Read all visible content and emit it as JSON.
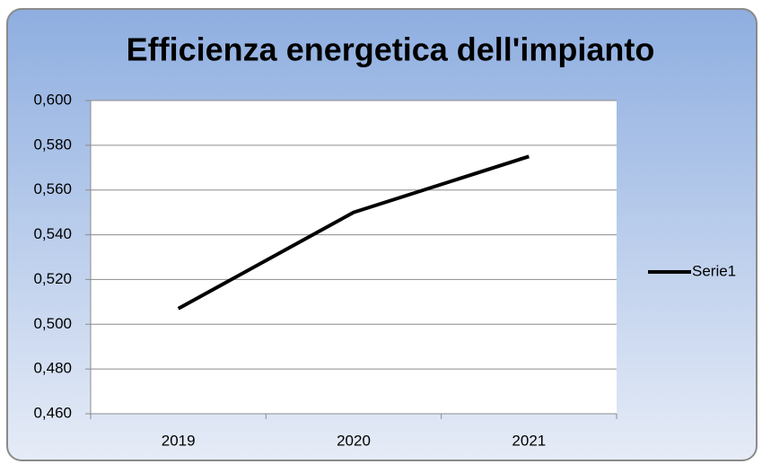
{
  "chart_data": {
    "type": "line",
    "title": "Efficienza energetica dell'impianto",
    "categories": [
      "2019",
      "2020",
      "2021"
    ],
    "series": [
      {
        "name": "Serie1",
        "color": "#000000",
        "values": [
          0.507,
          0.55,
          0.575
        ]
      }
    ],
    "ylim": [
      0.46,
      0.6
    ],
    "yticks": [
      {
        "value": 0.46,
        "label": "0,460"
      },
      {
        "value": 0.48,
        "label": "0,480"
      },
      {
        "value": 0.5,
        "label": "0,500"
      },
      {
        "value": 0.52,
        "label": "0,520"
      },
      {
        "value": 0.54,
        "label": "0,540"
      },
      {
        "value": 0.56,
        "label": "0,560"
      },
      {
        "value": 0.58,
        "label": "0,580"
      },
      {
        "value": 0.6,
        "label": "0,600"
      }
    ],
    "grid": true,
    "legend": "right"
  }
}
